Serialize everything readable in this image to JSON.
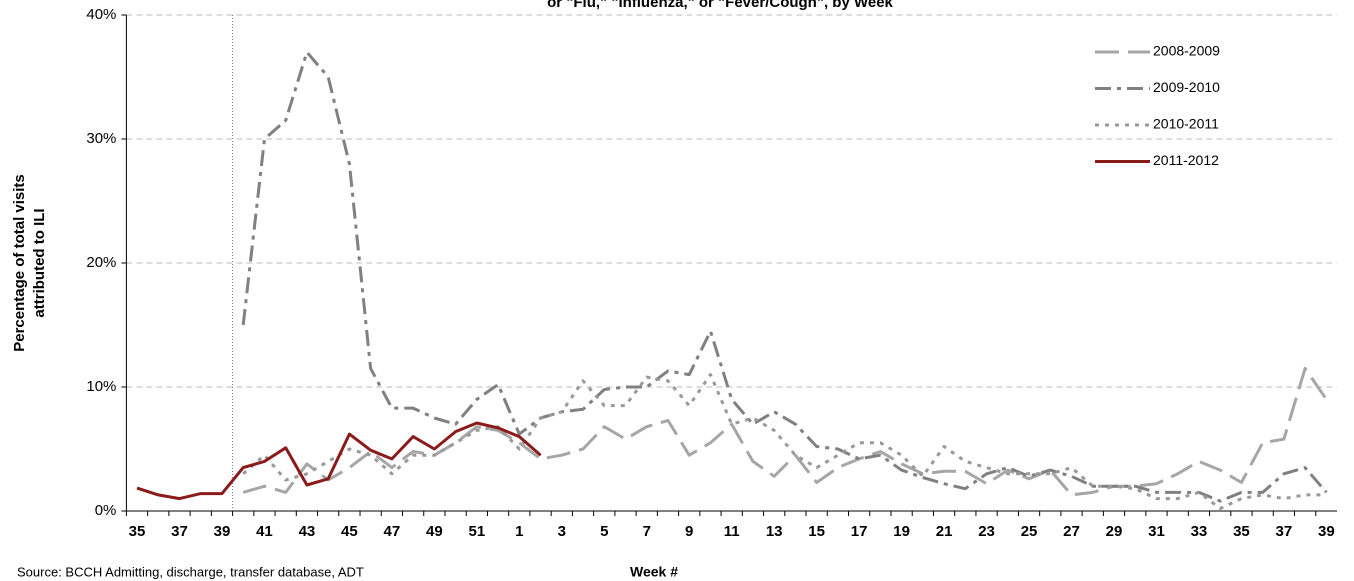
{
  "chart_data": {
    "type": "line",
    "title": "or \"Flu,\" \"Influenza,\" or \"Fever/Cough\", by Week",
    "ylabel": [
      "Percentage of total visits",
      "attributed to ILI"
    ],
    "xlabel": "Week #",
    "source": "Source: BCCH Admitting, discharge, transfer database, ADT",
    "categories": [
      "35",
      null,
      "37",
      null,
      "39",
      null,
      "41",
      null,
      "43",
      null,
      "45",
      null,
      "47",
      null,
      "49",
      null,
      "51",
      null,
      "1",
      null,
      "3",
      null,
      "5",
      null,
      "7",
      null,
      "9",
      null,
      "11",
      null,
      "13",
      null,
      "15",
      null,
      "17",
      null,
      "19",
      null,
      "21",
      null,
      "23",
      null,
      "25",
      null,
      "27",
      null,
      "29",
      null,
      "31",
      null,
      "33",
      null,
      "35",
      null,
      "37",
      null,
      "39"
    ],
    "ylim": [
      0,
      40
    ],
    "yticks": [
      {
        "value": 0,
        "label": "0%"
      },
      {
        "value": 10,
        "label": "10%"
      },
      {
        "value": 20,
        "label": "20%"
      },
      {
        "value": 30,
        "label": "30%"
      },
      {
        "value": 40,
        "label": "40%"
      }
    ],
    "grid": true,
    "legend": "upper right",
    "series": [
      {
        "name": "2008-2009",
        "color": "#a6a6a6",
        "style": "long-dash",
        "values": [
          null,
          null,
          null,
          null,
          null,
          1.5,
          2.0,
          1.5,
          3.8,
          2.5,
          3.5,
          4.8,
          3.5,
          4.8,
          4.5,
          5.5,
          6.8,
          6.5,
          5.5,
          4.2,
          4.5,
          5.0,
          6.8,
          5.8,
          6.8,
          7.3,
          4.5,
          5.5,
          7.0,
          4.0,
          2.8,
          4.5,
          2.3,
          3.5,
          4.2,
          4.8,
          3.8,
          3.0,
          3.2,
          3.2,
          2.2,
          3.3,
          2.6,
          3.3,
          1.3,
          1.5,
          2.0,
          2.0,
          2.2,
          3.0,
          4.0,
          3.3,
          2.3,
          5.5,
          5.8,
          11.5,
          9.0
        ]
      },
      {
        "name": "2009-2010",
        "color": "#808080",
        "style": "dash-dot",
        "values": [
          null,
          null,
          null,
          null,
          null,
          15.0,
          30.0,
          31.5,
          37.0,
          35.0,
          28.0,
          11.5,
          8.3,
          8.3,
          7.5,
          7.0,
          9.0,
          10.2,
          6.2,
          7.5,
          8.0,
          8.2,
          9.8,
          10.0,
          10.0,
          11.3,
          11.0,
          14.5,
          9.0,
          7.0,
          8.0,
          7.0,
          5.2,
          5.0,
          4.2,
          4.5,
          3.3,
          2.7,
          2.2,
          1.8,
          3.0,
          3.5,
          2.8,
          3.3,
          2.8,
          2.0,
          2.0,
          2.0,
          1.5,
          1.5,
          1.5,
          0.8,
          1.5,
          1.5,
          3.0,
          3.5,
          1.5
        ]
      },
      {
        "name": "2010-2011",
        "color": "#999999",
        "style": "dot",
        "values": [
          null,
          null,
          null,
          null,
          null,
          3.0,
          4.5,
          2.5,
          3.0,
          4.0,
          5.0,
          4.5,
          3.0,
          4.5,
          4.5,
          5.5,
          6.5,
          6.8,
          5.0,
          7.5,
          8.0,
          10.5,
          8.5,
          8.5,
          10.8,
          10.5,
          8.5,
          11.0,
          7.0,
          7.5,
          6.5,
          4.5,
          3.5,
          4.5,
          5.5,
          5.5,
          4.5,
          2.8,
          5.2,
          4.0,
          3.5,
          3.0,
          3.0,
          3.0,
          3.5,
          2.0,
          2.0,
          1.8,
          1.0,
          1.0,
          1.5,
          0.2,
          1.0,
          1.3,
          1.0,
          1.3,
          1.3
        ]
      },
      {
        "name": "2011-2012",
        "color": "#8b1a1a",
        "style": "solid",
        "values": [
          1.85,
          1.3,
          1.0,
          1.4,
          1.4,
          3.5,
          4.0,
          5.1,
          2.1,
          2.6,
          6.2,
          4.9,
          4.2,
          6.0,
          5.0,
          6.4,
          7.1,
          6.7,
          6.0,
          4.5,
          null,
          null,
          null,
          null,
          null,
          null,
          null,
          null,
          null,
          null,
          null,
          null,
          null,
          null,
          null,
          null,
          null,
          null,
          null,
          null,
          null,
          null,
          null,
          null,
          null,
          null,
          null,
          null,
          null,
          null,
          null,
          null,
          null,
          null,
          null,
          null,
          null
        ]
      }
    ]
  }
}
